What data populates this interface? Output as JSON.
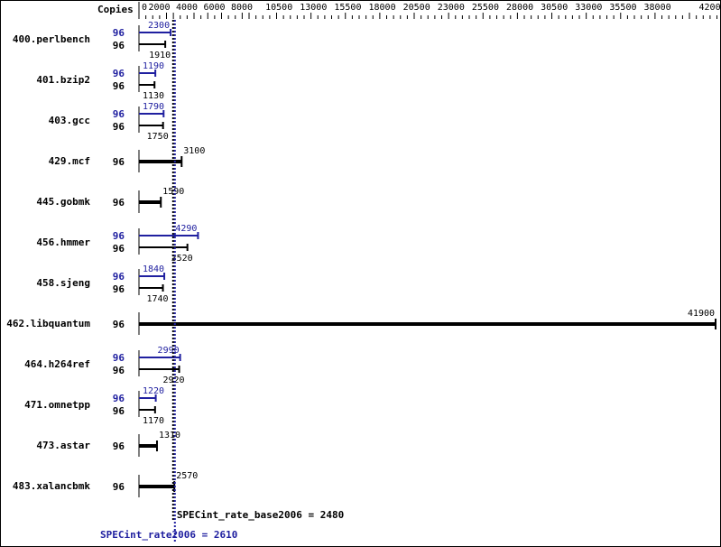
{
  "chart_data": {
    "type": "bar",
    "orientation": "horizontal",
    "copies_header": "Copies",
    "xlim": [
      0,
      42000
    ],
    "x_tick_labels": [
      "0",
      "2000",
      "4000",
      "6000",
      "8000",
      "10500",
      "13000",
      "15500",
      "18000",
      "20500",
      "23000",
      "25500",
      "28000",
      "30500",
      "33000",
      "35500",
      "38000",
      "42000"
    ],
    "x_tick_values": [
      0,
      2000,
      4000,
      6000,
      8000,
      10500,
      13000,
      15500,
      18000,
      20500,
      23000,
      25500,
      28000,
      30500,
      33000,
      35500,
      38000,
      42000
    ],
    "colors": {
      "base": "#000000",
      "peak": "#2020a0"
    },
    "benchmarks": [
      {
        "name": "400.perlbench",
        "peak_copies": "96",
        "peak": 2300,
        "base_copies": "96",
        "base": 1910
      },
      {
        "name": "401.bzip2",
        "peak_copies": "96",
        "peak": 1190,
        "base_copies": "96",
        "base": 1130
      },
      {
        "name": "403.gcc",
        "peak_copies": "96",
        "peak": 1790,
        "base_copies": "96",
        "base": 1750
      },
      {
        "name": "429.mcf",
        "base_copies": "96",
        "base": 3100
      },
      {
        "name": "445.gobmk",
        "base_copies": "96",
        "base": 1590
      },
      {
        "name": "456.hmmer",
        "peak_copies": "96",
        "peak": 4290,
        "base_copies": "96",
        "base": 3520
      },
      {
        "name": "458.sjeng",
        "peak_copies": "96",
        "peak": 1840,
        "base_copies": "96",
        "base": 1740
      },
      {
        "name": "462.libquantum",
        "base_copies": "96",
        "base": 41900
      },
      {
        "name": "464.h264ref",
        "peak_copies": "96",
        "peak": 2990,
        "base_copies": "96",
        "base": 2920
      },
      {
        "name": "471.omnetpp",
        "peak_copies": "96",
        "peak": 1220,
        "base_copies": "96",
        "base": 1170
      },
      {
        "name": "473.astar",
        "base_copies": "96",
        "base": 1310
      },
      {
        "name": "483.xalancbmk",
        "base_copies": "96",
        "base": 2570
      }
    ],
    "summary_base": {
      "label": "SPECint_rate_base2006 = 2480",
      "value": 2480
    },
    "summary_peak": {
      "label": "SPECint_rate2006 = 2610",
      "value": 2610
    }
  }
}
